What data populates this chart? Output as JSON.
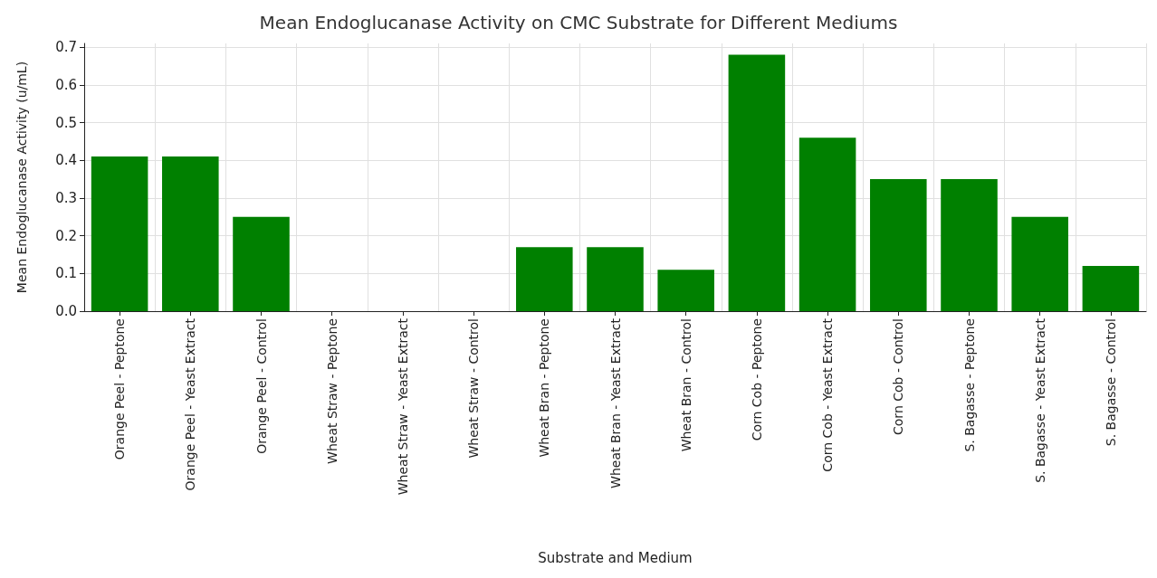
{
  "chart_data": {
    "type": "bar",
    "title": "Mean Endoglucanase Activity on CMC Substrate for Different Mediums",
    "xlabel": "Substrate and Medium",
    "ylabel": "Mean Endoglucanase Activity (u/mL)",
    "categories": [
      "Orange Peel - Peptone",
      "Orange Peel - Yeast Extract",
      "Orange Peel - Control",
      "Wheat Straw - Peptone",
      "Wheat Straw - Yeast Extract",
      "Wheat Straw - Control",
      "Wheat Bran - Peptone",
      "Wheat Bran - Yeast Extract",
      "Wheat Bran - Control",
      "Corn Cob - Peptone",
      "Corn Cob - Yeast Extract",
      "Corn Cob - Control",
      "S. Bagasse - Peptone",
      "S. Bagasse - Yeast Extract",
      "S. Bagasse - Control"
    ],
    "values": [
      0.41,
      0.41,
      0.25,
      0,
      0,
      0,
      0.17,
      0.17,
      0.11,
      0.68,
      0.46,
      0.35,
      0.35,
      0.25,
      0.12
    ],
    "color": "#008000",
    "ylim": [
      0,
      0.71
    ],
    "yticks": [
      {
        "value": 0,
        "label": "0.0"
      },
      0.1,
      0.2,
      0.3,
      0.4,
      0.5,
      0.6,
      0.7
    ],
    "grid": true
  }
}
